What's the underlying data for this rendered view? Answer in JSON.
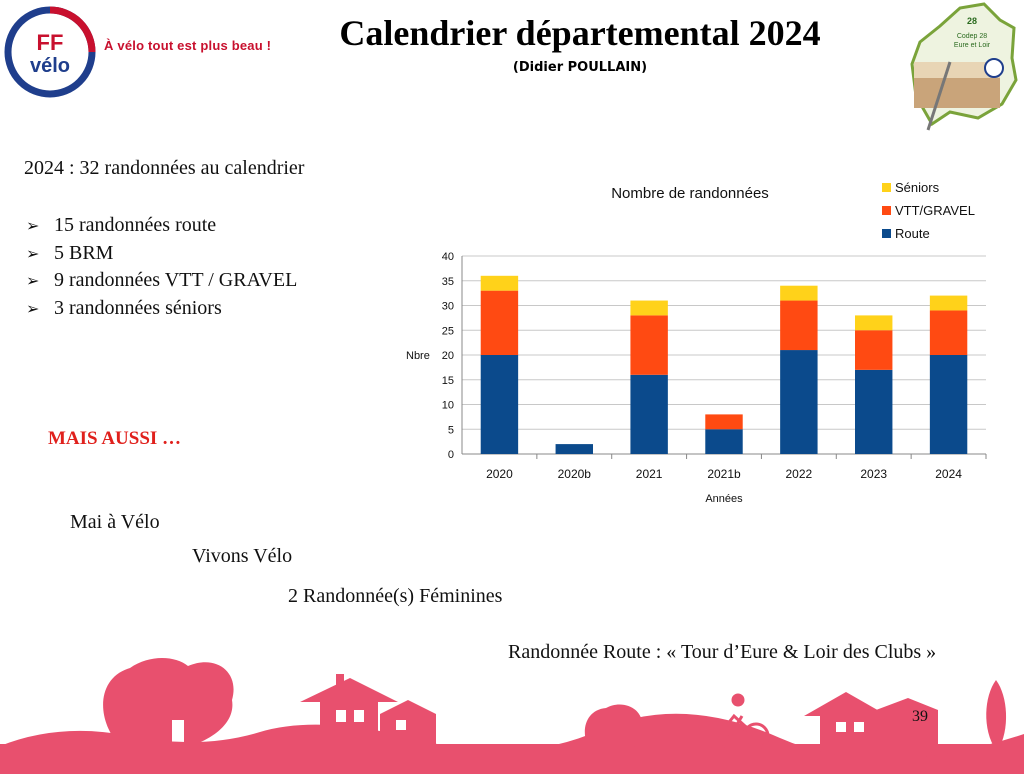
{
  "header": {
    "tagline": "À vélo tout est plus beau !",
    "title": "Calendrier départemental 2024",
    "subtitle": "(Didier POULLAIN)",
    "logo_top": "FF",
    "logo_bottom": "vélo",
    "codep_number": "28",
    "codep_line1": "Codep 28",
    "codep_line2": "Eure et Loir"
  },
  "summary": "2024  : 32 randonnées au calendrier",
  "bullets": [
    "15 randonnées route",
    "5 BRM",
    "9 randonnées VTT / GRAVEL",
    "3 randonnées séniors"
  ],
  "also": {
    "heading": "MAIS AUSSI …",
    "item1": "Mai à Vélo",
    "item2": "Vivons Vélo",
    "item3": "2 Randonnée(s) Féminines",
    "item4": "Randonnée Route :  « Tour d’Eure & Loir des Clubs »"
  },
  "page_number": "39",
  "colors": {
    "route": "#0b4a8c",
    "vtt": "#ff4a12",
    "seniors": "#ffd21a",
    "brand_red": "#c8102e",
    "footer_pink": "#e8506e"
  },
  "icons": {
    "logo": "ffvelo-logo",
    "codep": "codep28-logo",
    "bullet": "arrowhead-bullet-icon"
  },
  "chart_data": {
    "type": "bar",
    "stacked": true,
    "title": "Nombre de randonnées",
    "xlabel": "Années",
    "ylabel": "Nbre",
    "categories": [
      "2020",
      "2020b",
      "2021",
      "2021b",
      "2022",
      "2023",
      "2024"
    ],
    "series": [
      {
        "name": "Route",
        "values": [
          20,
          2,
          16,
          5,
          21,
          17,
          20
        ]
      },
      {
        "name": "VTT/GRAVEL",
        "values": [
          13,
          0,
          12,
          3,
          10,
          8,
          9
        ]
      },
      {
        "name": "Séniors",
        "values": [
          3,
          0,
          3,
          0,
          3,
          3,
          3
        ]
      }
    ],
    "ylim": [
      0,
      40
    ],
    "yticks": [
      0,
      5,
      10,
      15,
      20,
      25,
      30,
      35,
      40
    ],
    "grid": true,
    "legend": "top-right"
  }
}
